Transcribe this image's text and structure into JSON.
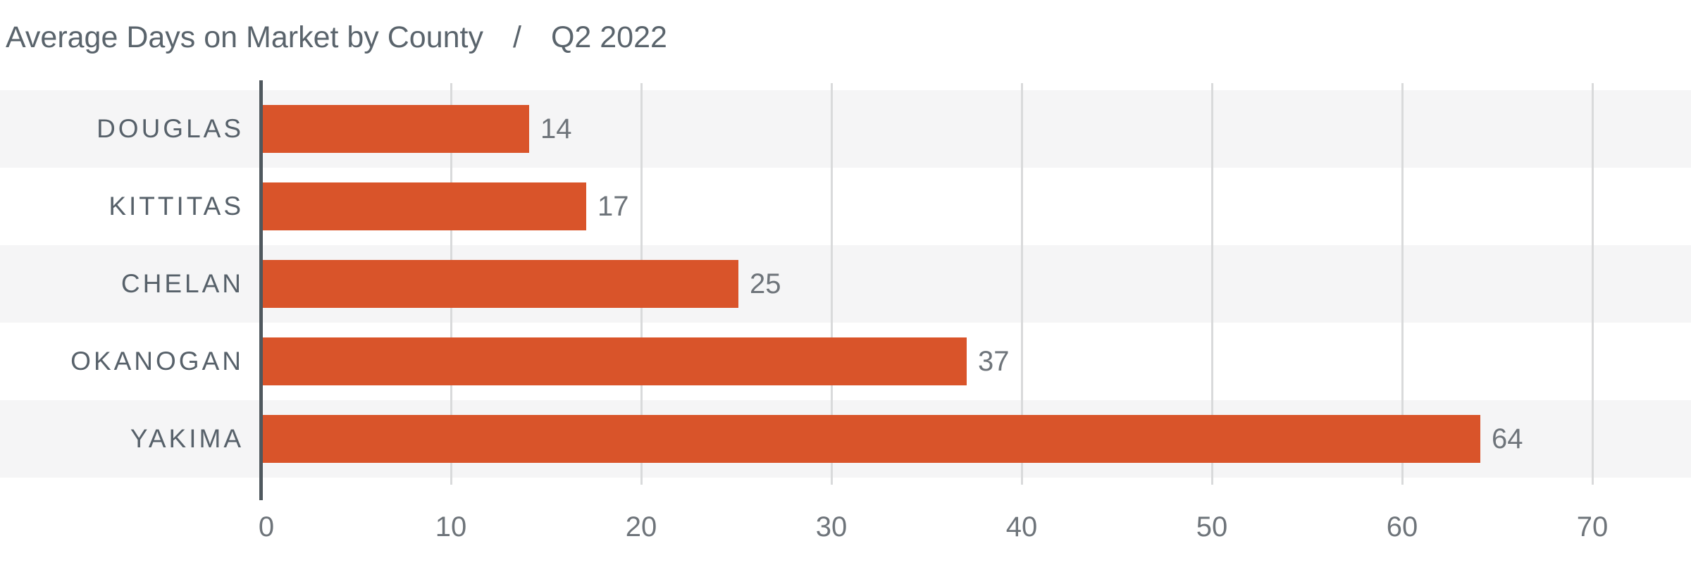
{
  "title": {
    "main": "Average Days on Market by County",
    "separator": "/",
    "period": "Q2 2022"
  },
  "chart_data": {
    "type": "bar",
    "orientation": "horizontal",
    "title": "Average Days on Market by County / Q2 2022",
    "categories": [
      "DOUGLAS",
      "KITTITAS",
      "CHELAN",
      "OKANOGAN",
      "YAKIMA"
    ],
    "values": [
      14,
      17,
      25,
      37,
      64
    ],
    "value_labels": [
      "14",
      "17",
      "25",
      "37",
      "64"
    ],
    "xlabel": "",
    "ylabel": "",
    "xlim": [
      0,
      70
    ],
    "xticks": [
      0,
      10,
      20,
      30,
      40,
      50,
      60,
      70
    ],
    "grid": true,
    "legend": "none",
    "colors": {
      "bar": "#d9542a",
      "row_stripe": "#f5f5f6",
      "gridline": "#d9dadb",
      "axis_line": "#4f585e",
      "title_text": "#5a646c",
      "category_text": "#57616a",
      "value_text": "#6e747a",
      "tick_text": "#6e747a",
      "background": "#ffffff"
    }
  }
}
